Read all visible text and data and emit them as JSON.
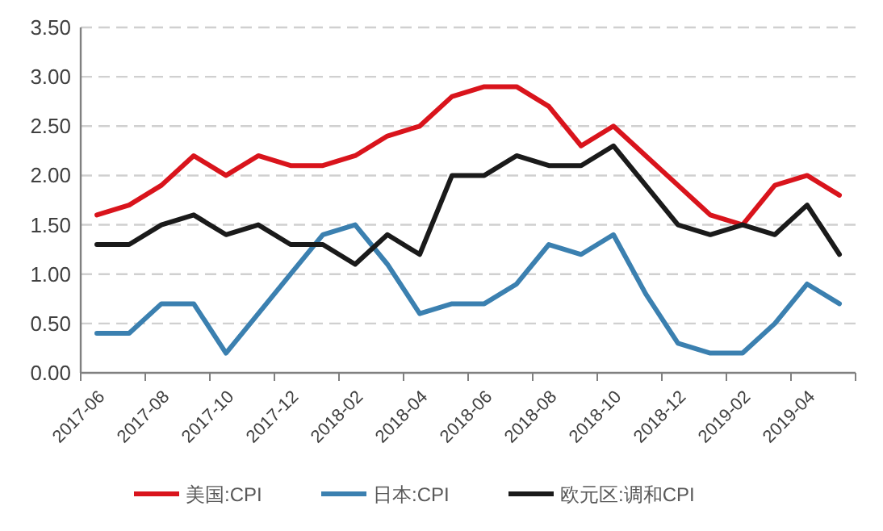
{
  "chart_data": {
    "type": "line",
    "categories": [
      "2017-06",
      null,
      "2017-08",
      null,
      "2017-10",
      null,
      "2017-12",
      null,
      "2018-02",
      null,
      "2018-04",
      null,
      "2018-06",
      null,
      "2018-08",
      null,
      "2018-10",
      null,
      "2018-12",
      null,
      "2019-02",
      null,
      "2019-04",
      null
    ],
    "series": [
      {
        "name": "美国:CPI",
        "color": "#d9141c",
        "values": [
          1.6,
          1.7,
          1.9,
          2.2,
          2.0,
          2.2,
          2.1,
          2.1,
          2.2,
          2.4,
          2.5,
          2.8,
          2.9,
          2.9,
          2.7,
          2.3,
          2.5,
          2.2,
          1.9,
          1.6,
          1.5,
          1.9,
          2.0,
          1.8
        ]
      },
      {
        "name": "日本:CPI",
        "color": "#3b80b0",
        "values": [
          0.4,
          0.4,
          0.7,
          0.7,
          0.2,
          0.6,
          1.0,
          1.4,
          1.5,
          1.1,
          0.6,
          0.7,
          0.7,
          0.9,
          1.3,
          1.2,
          1.4,
          0.8,
          0.3,
          0.2,
          0.2,
          0.5,
          0.9,
          0.7
        ]
      },
      {
        "name": "欧元区:调和CPI",
        "color": "#1a1a1a",
        "values": [
          1.3,
          1.3,
          1.5,
          1.6,
          1.4,
          1.5,
          1.3,
          1.3,
          1.1,
          1.4,
          1.2,
          2.0,
          2.0,
          2.2,
          2.1,
          2.1,
          2.3,
          1.9,
          1.5,
          1.4,
          1.5,
          1.4,
          1.7,
          1.2
        ]
      }
    ],
    "ylim": [
      0,
      3.5
    ],
    "yticks": [
      {
        "value": 0,
        "label": "0.00"
      },
      {
        "value": 0.5,
        "label": "0.50"
      },
      {
        "value": 1,
        "label": "1.00"
      },
      {
        "value": 1.5,
        "label": "1.50"
      },
      {
        "value": 2,
        "label": "2.00"
      },
      {
        "value": 2.5,
        "label": "2.50"
      },
      {
        "value": 3,
        "label": "3.00"
      },
      {
        "value": 3.5,
        "label": "3.50"
      }
    ],
    "grid": "y",
    "legend": "bottom",
    "marker": "none",
    "line_style": "solid"
  }
}
